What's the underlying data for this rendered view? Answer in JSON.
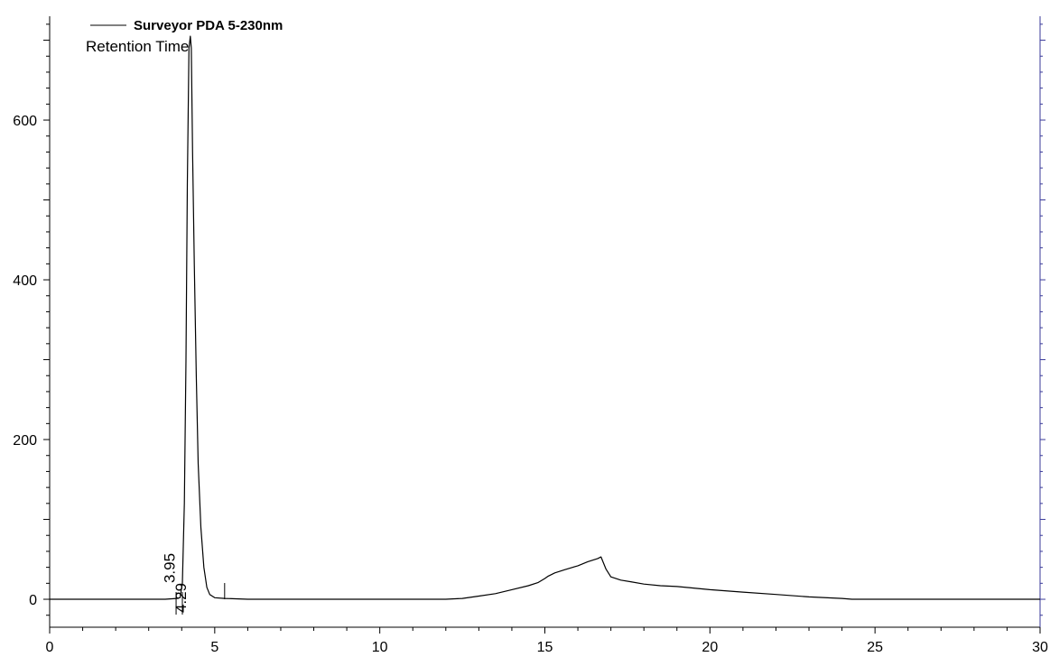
{
  "chart_data": {
    "type": "line",
    "xlabel": "",
    "ylabel": "",
    "xlim": [
      0,
      30
    ],
    "ylim": [
      -35,
      730
    ],
    "x_ticks": [
      0,
      5,
      10,
      15,
      20,
      25,
      30
    ],
    "y_ticks": [
      0,
      200,
      400,
      600
    ],
    "x_tick_labels": [
      "0",
      "5",
      "10",
      "15",
      "20",
      "25",
      "30"
    ],
    "y_tick_labels": [
      "0",
      "200",
      "400",
      "600"
    ],
    "grid": false,
    "legend": {
      "position": "top-left",
      "entries": [
        "Surveyor PDA 5-230nm"
      ]
    },
    "annotation": "Retention Time",
    "series": [
      {
        "name": "Surveyor PDA 5-230nm",
        "color": "#000000",
        "x": [
          0,
          1,
          2,
          3,
          3.5,
          3.85,
          3.95,
          4.02,
          4.08,
          4.13,
          4.17,
          4.22,
          4.26,
          4.29,
          4.33,
          4.38,
          4.44,
          4.5,
          4.58,
          4.67,
          4.76,
          4.85,
          5.0,
          5.3,
          6,
          8,
          10,
          11,
          12,
          12.5,
          13,
          13.5,
          14,
          14.5,
          14.8,
          15.0,
          15.1,
          15.3,
          15.6,
          16.0,
          16.3,
          16.6,
          16.7,
          16.85,
          17.0,
          17.3,
          17.6,
          18.0,
          18.5,
          19.0,
          19.5,
          20.0,
          21,
          22,
          23,
          24,
          24.3,
          25,
          26,
          27,
          28,
          29,
          30
        ],
        "y": [
          0,
          0,
          0,
          0,
          0,
          1,
          2,
          20,
          120,
          300,
          520,
          690,
          705,
          690,
          560,
          420,
          280,
          170,
          90,
          40,
          15,
          6,
          2,
          1,
          0,
          0,
          0,
          0,
          0,
          1,
          4,
          7,
          12,
          17,
          21,
          26,
          29,
          33,
          37,
          42,
          47,
          51,
          53,
          38,
          28,
          24,
          22,
          19,
          17,
          16,
          14,
          12,
          9,
          6,
          3,
          1,
          0,
          0,
          0,
          0,
          0,
          0,
          0
        ]
      }
    ],
    "peaks": [
      {
        "label": "3.95",
        "x": 3.95
      },
      {
        "label": "4.29",
        "x": 4.29
      }
    ]
  }
}
